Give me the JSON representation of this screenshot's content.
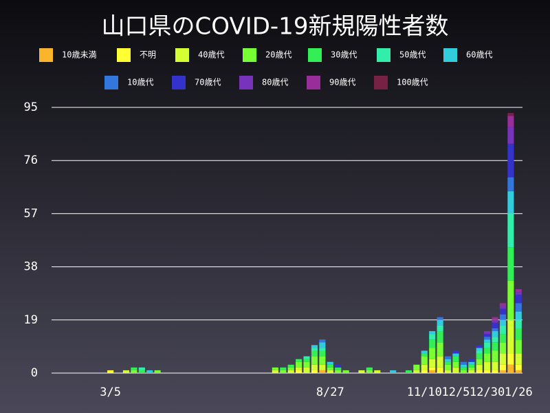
{
  "chart_data": {
    "type": "bar",
    "stacked": true,
    "title": "山口県のCOVID-19新規陽性者数",
    "categories": [
      null,
      null,
      null,
      null,
      null,
      null,
      null,
      "3/5",
      null,
      null,
      null,
      null,
      null,
      null,
      null,
      null,
      null,
      null,
      null,
      null,
      null,
      null,
      null,
      null,
      null,
      null,
      null,
      null,
      null,
      null,
      null,
      null,
      null,
      null,
      null,
      "8/27",
      null,
      null,
      null,
      null,
      null,
      null,
      null,
      null,
      null,
      null,
      null,
      "11/10",
      null,
      null,
      null,
      "12/5",
      null,
      null,
      null,
      "12/30",
      null,
      null,
      null,
      "1/26"
    ],
    "series": [
      {
        "name": "10歳未満",
        "color": "#fbb52b",
        "values": [
          0,
          0,
          0,
          0,
          0,
          0,
          0,
          0,
          0,
          0,
          0,
          0,
          0,
          0,
          0,
          0,
          0,
          0,
          0,
          0,
          0,
          0,
          0,
          0,
          0,
          0,
          0,
          0,
          0,
          0,
          0,
          0,
          0,
          0,
          1,
          0,
          0,
          0,
          0,
          0,
          0,
          0,
          0,
          0,
          0,
          0,
          0,
          0,
          1,
          0,
          0,
          0,
          0,
          0,
          0,
          0,
          0,
          1,
          3,
          1
        ]
      },
      {
        "name": "不明",
        "color": "#ffff33",
        "values": [
          0,
          0,
          0,
          0,
          0,
          0,
          0,
          1,
          0,
          0,
          0,
          0,
          0,
          0,
          0,
          0,
          0,
          0,
          0,
          0,
          0,
          0,
          0,
          0,
          0,
          0,
          0,
          0,
          0,
          0,
          0,
          1,
          0,
          1,
          0,
          0,
          0,
          0,
          0,
          0,
          0,
          0,
          0,
          0,
          0,
          0,
          0,
          1,
          1,
          2,
          0,
          0,
          0,
          0,
          1,
          1,
          1,
          2,
          4,
          2
        ]
      },
      {
        "name": "40歳代",
        "color": "#d4ff33",
        "values": [
          0,
          0,
          0,
          0,
          0,
          0,
          0,
          0,
          0,
          1,
          0,
          0,
          0,
          0,
          0,
          0,
          0,
          0,
          0,
          0,
          0,
          0,
          0,
          0,
          0,
          0,
          0,
          0,
          1,
          0,
          1,
          1,
          2,
          2,
          2,
          1,
          0,
          0,
          0,
          1,
          0,
          1,
          0,
          0,
          0,
          0,
          1,
          2,
          3,
          4,
          1,
          2,
          0,
          1,
          2,
          3,
          3,
          4,
          12,
          4
        ]
      },
      {
        "name": "20歳代",
        "color": "#77ff33",
        "values": [
          0,
          0,
          0,
          0,
          0,
          0,
          0,
          0,
          0,
          0,
          1,
          0,
          0,
          1,
          0,
          0,
          0,
          0,
          0,
          0,
          0,
          0,
          0,
          0,
          0,
          0,
          0,
          0,
          1,
          1,
          1,
          2,
          2,
          3,
          3,
          1,
          1,
          1,
          0,
          0,
          1,
          0,
          0,
          0,
          0,
          0,
          2,
          3,
          4,
          5,
          2,
          2,
          1,
          1,
          2,
          3,
          4,
          4,
          14,
          5
        ]
      },
      {
        "name": "30歳代",
        "color": "#33ee55",
        "values": [
          0,
          0,
          0,
          0,
          0,
          0,
          0,
          0,
          0,
          0,
          1,
          1,
          0,
          0,
          0,
          0,
          0,
          0,
          0,
          0,
          0,
          0,
          0,
          0,
          0,
          0,
          0,
          0,
          0,
          1,
          1,
          1,
          1,
          2,
          2,
          1,
          1,
          0,
          0,
          0,
          1,
          0,
          0,
          0,
          0,
          1,
          0,
          1,
          3,
          4,
          1,
          2,
          1,
          1,
          2,
          2,
          3,
          3,
          12,
          4
        ]
      },
      {
        "name": "50歳代",
        "color": "#33eeaa",
        "values": [
          0,
          0,
          0,
          0,
          0,
          0,
          0,
          0,
          0,
          0,
          0,
          1,
          0,
          0,
          0,
          0,
          0,
          0,
          0,
          0,
          0,
          0,
          0,
          0,
          0,
          0,
          0,
          0,
          0,
          0,
          0,
          0,
          1,
          1,
          1,
          0,
          0,
          0,
          0,
          0,
          0,
          0,
          0,
          0,
          0,
          0,
          0,
          0,
          2,
          2,
          0,
          0,
          0,
          0,
          1,
          2,
          2,
          3,
          12,
          3
        ]
      },
      {
        "name": "60歳代",
        "color": "#33ccdd",
        "values": [
          0,
          0,
          0,
          0,
          0,
          0,
          0,
          0,
          0,
          0,
          0,
          0,
          1,
          0,
          0,
          0,
          0,
          0,
          0,
          0,
          0,
          0,
          0,
          0,
          0,
          0,
          0,
          0,
          0,
          0,
          0,
          0,
          0,
          1,
          2,
          1,
          0,
          0,
          0,
          0,
          0,
          0,
          0,
          1,
          0,
          0,
          0,
          1,
          1,
          2,
          1,
          1,
          1,
          1,
          1,
          1,
          2,
          2,
          8,
          3
        ]
      },
      {
        "name": "10歳代",
        "color": "#3377dd",
        "values": [
          0,
          0,
          0,
          0,
          0,
          0,
          0,
          0,
          0,
          0,
          0,
          0,
          0,
          0,
          0,
          0,
          0,
          0,
          0,
          0,
          0,
          0,
          0,
          0,
          0,
          0,
          0,
          0,
          0,
          0,
          0,
          0,
          0,
          0,
          1,
          0,
          0,
          0,
          0,
          0,
          0,
          0,
          0,
          0,
          0,
          0,
          0,
          0,
          0,
          1,
          1,
          0,
          1,
          0,
          0,
          1,
          1,
          2,
          5,
          3
        ]
      },
      {
        "name": "70歳代",
        "color": "#3333cc",
        "values": [
          0,
          0,
          0,
          0,
          0,
          0,
          0,
          0,
          0,
          0,
          0,
          0,
          0,
          0,
          0,
          0,
          0,
          0,
          0,
          0,
          0,
          0,
          0,
          0,
          0,
          0,
          0,
          0,
          0,
          0,
          0,
          0,
          0,
          0,
          0,
          0,
          1,
          0,
          0,
          0,
          0,
          0,
          0,
          0,
          0,
          0,
          0,
          0,
          0,
          0,
          0,
          1,
          0,
          1,
          1,
          1,
          2,
          2,
          12,
          3
        ]
      },
      {
        "name": "80歳代",
        "color": "#7733bb",
        "values": [
          0,
          0,
          0,
          0,
          0,
          0,
          0,
          0,
          0,
          0,
          0,
          0,
          0,
          0,
          0,
          0,
          0,
          0,
          0,
          0,
          0,
          0,
          0,
          0,
          0,
          0,
          0,
          0,
          0,
          0,
          0,
          0,
          0,
          0,
          0,
          0,
          0,
          0,
          0,
          0,
          0,
          0,
          0,
          0,
          0,
          0,
          0,
          0,
          0,
          0,
          0,
          0,
          0,
          0,
          0,
          1,
          1,
          1,
          6,
          1
        ]
      },
      {
        "name": "90歳代",
        "color": "#992d99",
        "values": [
          0,
          0,
          0,
          0,
          0,
          0,
          0,
          0,
          0,
          0,
          0,
          0,
          0,
          0,
          0,
          0,
          0,
          0,
          0,
          0,
          0,
          0,
          0,
          0,
          0,
          0,
          0,
          0,
          0,
          0,
          0,
          0,
          0,
          0,
          0,
          0,
          0,
          0,
          0,
          0,
          0,
          0,
          0,
          0,
          0,
          0,
          0,
          0,
          0,
          0,
          0,
          0,
          0,
          0,
          0,
          0,
          1,
          1,
          4,
          1
        ]
      },
      {
        "name": "100歳代",
        "color": "#772244",
        "values": [
          0,
          0,
          0,
          0,
          0,
          0,
          0,
          0,
          0,
          0,
          0,
          0,
          0,
          0,
          0,
          0,
          0,
          0,
          0,
          0,
          0,
          0,
          0,
          0,
          0,
          0,
          0,
          0,
          0,
          0,
          0,
          0,
          0,
          0,
          0,
          0,
          0,
          0,
          0,
          0,
          0,
          0,
          0,
          0,
          0,
          0,
          0,
          0,
          0,
          0,
          0,
          0,
          0,
          0,
          0,
          0,
          0,
          0,
          1,
          0
        ]
      }
    ],
    "ylim": [
      0,
      95
    ],
    "yticks": [
      0,
      19,
      38,
      57,
      76,
      95
    ],
    "grid": true
  }
}
